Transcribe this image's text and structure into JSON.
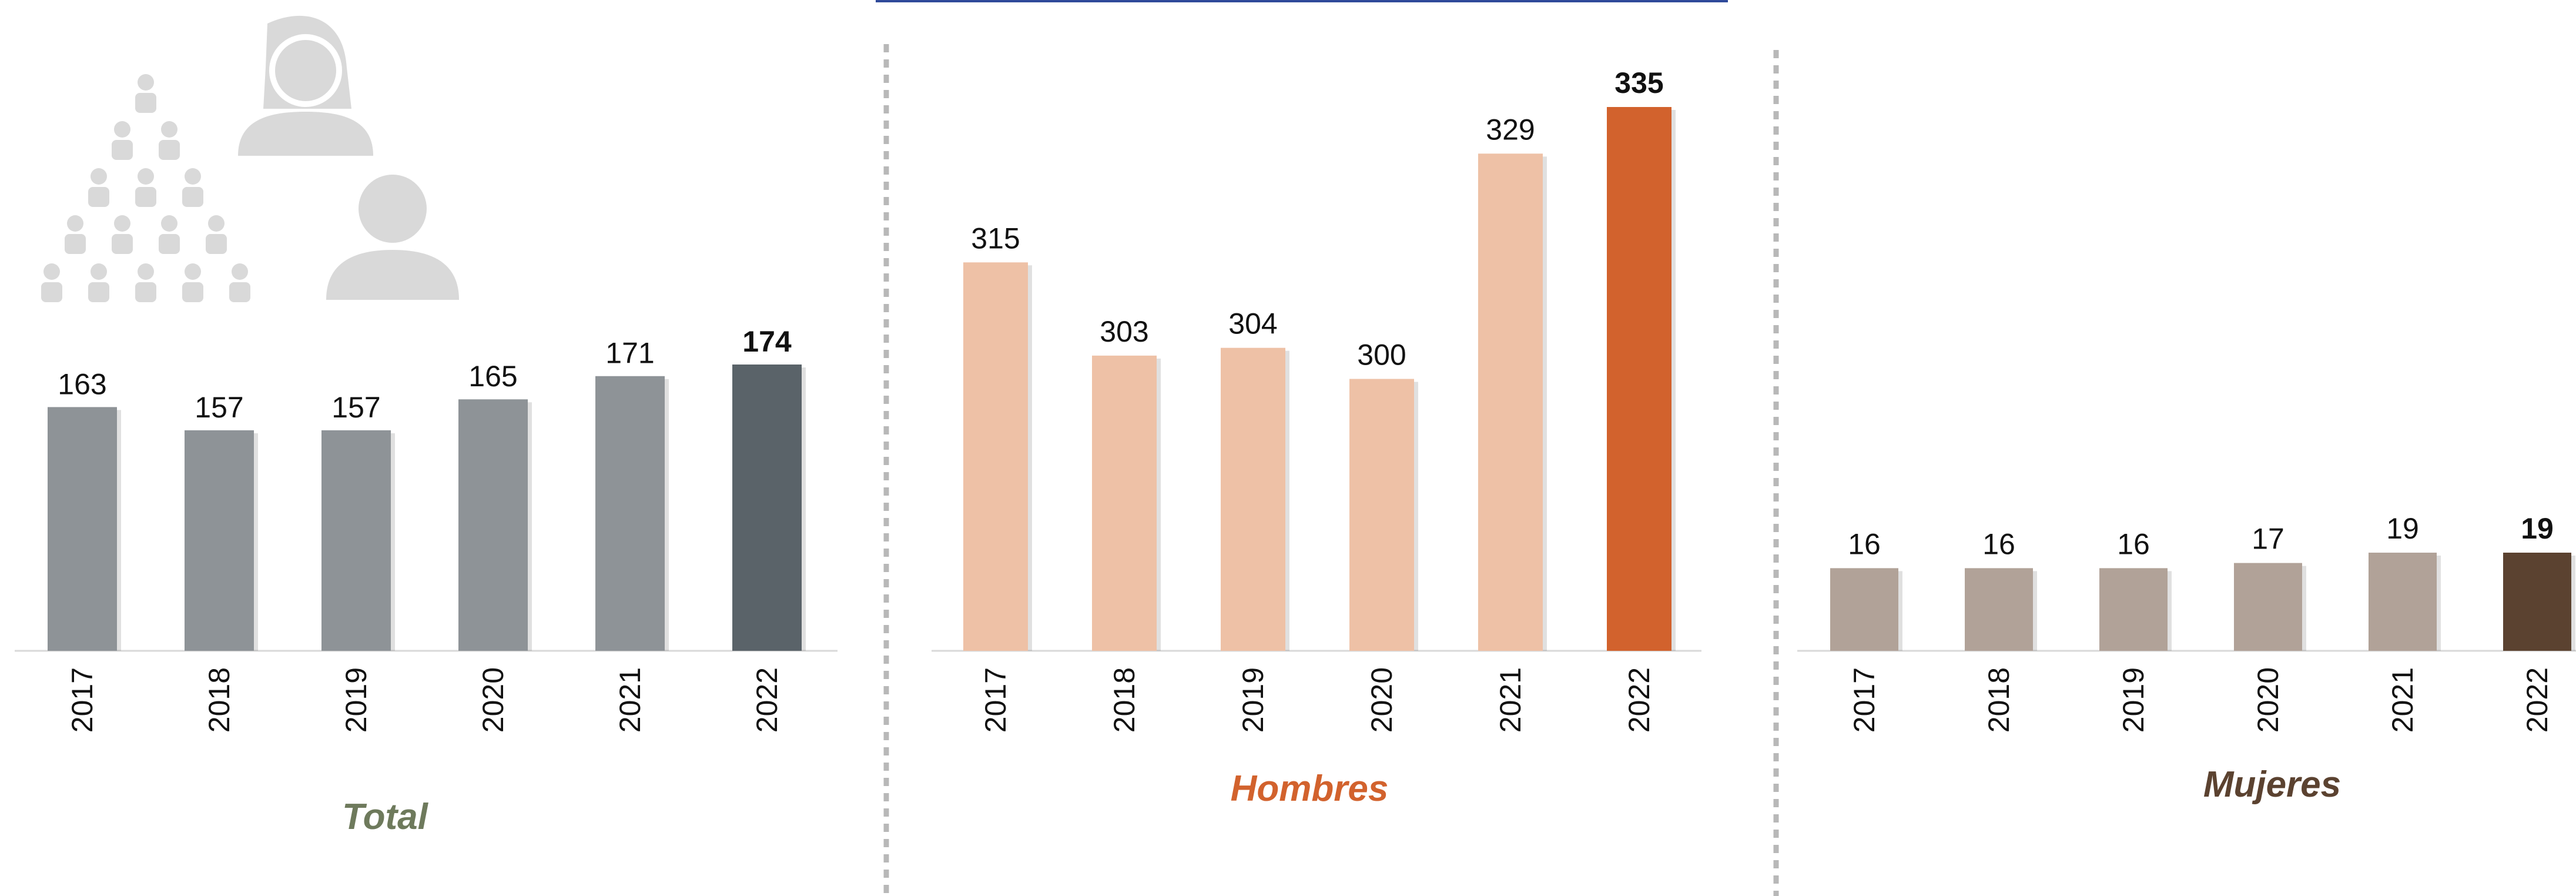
{
  "chart_data": [
    {
      "type": "bar",
      "title": "Total",
      "categories": [
        "2017",
        "2018",
        "2019",
        "2020",
        "2021",
        "2022"
      ],
      "values": [
        163,
        157,
        157,
        165,
        171,
        174
      ],
      "ylim": [
        100,
        180
      ],
      "colors": {
        "bars": "#8e9397",
        "highlight": "#5a6369",
        "title": "#6e7a5c"
      }
    },
    {
      "type": "bar",
      "title": "Hombres",
      "categories": [
        "2017",
        "2018",
        "2019",
        "2020",
        "2021",
        "2022"
      ],
      "values": [
        315,
        303,
        304,
        300,
        329,
        335
      ],
      "ylim": [
        265,
        340
      ],
      "colors": {
        "bars": "#eec1a6",
        "highlight": "#d2622d",
        "title": "#d2622d"
      }
    },
    {
      "type": "bar",
      "title": "Mujeres",
      "categories": [
        "2017",
        "2018",
        "2019",
        "2020",
        "2021",
        "2022"
      ],
      "values": [
        16,
        16,
        16,
        17,
        19,
        19
      ],
      "ylim": [
        0,
        72
      ],
      "colors": {
        "bars": "#b1a298",
        "highlight": "#5b4230",
        "title": "#5b4230"
      }
    }
  ],
  "decoration": {
    "icon": "people-pyramid-icon",
    "color": "#d9d9d9"
  }
}
